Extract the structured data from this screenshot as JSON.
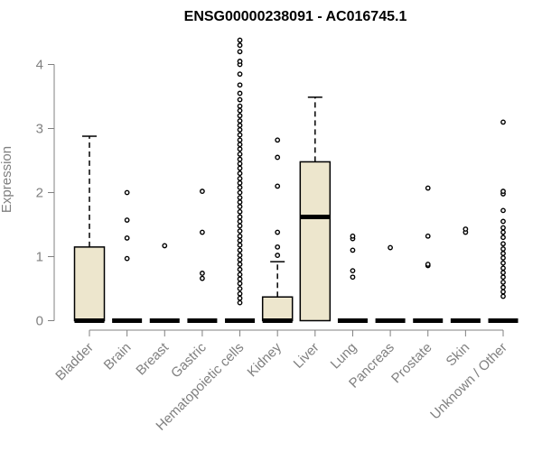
{
  "chart_data": {
    "type": "boxplot",
    "title": "ENSG00000238091 - AC016745.1",
    "ylabel": "Expression",
    "xlabel": "",
    "ylim": [
      0,
      4.4
    ],
    "yticks": [
      0,
      1,
      2,
      3,
      4
    ],
    "box_fill": "#EDE6CD",
    "axis_color": "#808080",
    "categories": [
      "Bladder",
      "Brain",
      "Breast",
      "Gastric",
      "Hematopoietic cells",
      "Kidney",
      "Liver",
      "Lung",
      "Pancreas",
      "Prostate",
      "Skin",
      "Unknown / Other"
    ],
    "boxes": [
      {
        "category": "Bladder",
        "min": 0,
        "q1": 0,
        "median": 0,
        "q3": 1.15,
        "max": 2.88,
        "outliers": []
      },
      {
        "category": "Brain",
        "min": 0,
        "q1": 0,
        "median": 0,
        "q3": 0,
        "max": 0,
        "outliers": [
          0.97,
          1.29,
          1.57,
          2.0
        ]
      },
      {
        "category": "Breast",
        "min": 0,
        "q1": 0,
        "median": 0,
        "q3": 0,
        "max": 0,
        "outliers": [
          1.17
        ]
      },
      {
        "category": "Gastric",
        "min": 0,
        "q1": 0,
        "median": 0,
        "q3": 0,
        "max": 0,
        "outliers": [
          0.66,
          0.74,
          1.38,
          2.02
        ]
      },
      {
        "category": "Hematopoietic cells",
        "min": 0,
        "q1": 0,
        "median": 0,
        "q3": 0,
        "max": 0,
        "outliers": [
          0.28,
          0.35,
          0.42,
          0.5,
          0.58,
          0.65,
          0.72,
          0.8,
          0.88,
          0.95,
          1.02,
          1.1,
          1.18,
          1.25,
          1.32,
          1.4,
          1.48,
          1.55,
          1.62,
          1.7,
          1.78,
          1.85,
          1.92,
          2.0,
          2.08,
          2.15,
          2.22,
          2.3,
          2.38,
          2.45,
          2.52,
          2.6,
          2.68,
          2.75,
          2.82,
          2.9,
          2.98,
          3.05,
          3.12,
          3.2,
          3.28,
          3.35,
          3.45,
          3.55,
          3.68,
          3.85,
          4.0,
          4.05,
          4.2,
          4.3,
          4.38
        ]
      },
      {
        "category": "Kidney",
        "min": 0,
        "q1": 0,
        "median": 0,
        "q3": 0.37,
        "max": 0.92,
        "outliers": [
          1.02,
          1.15,
          1.38,
          2.1,
          2.55,
          2.82
        ]
      },
      {
        "category": "Liver",
        "min": 0,
        "q1": 0,
        "median": 1.62,
        "q3": 2.48,
        "max": 3.49,
        "outliers": []
      },
      {
        "category": "Lung",
        "min": 0,
        "q1": 0,
        "median": 0,
        "q3": 0,
        "max": 0,
        "outliers": [
          0.68,
          0.78,
          1.1,
          1.28,
          1.32
        ]
      },
      {
        "category": "Pancreas",
        "min": 0,
        "q1": 0,
        "median": 0,
        "q3": 0,
        "max": 0,
        "outliers": [
          1.14
        ]
      },
      {
        "category": "Prostate",
        "min": 0,
        "q1": 0,
        "median": 0,
        "q3": 0,
        "max": 0,
        "outliers": [
          0.86,
          0.88,
          1.32,
          2.07
        ]
      },
      {
        "category": "Skin",
        "min": 0,
        "q1": 0,
        "median": 0,
        "q3": 0,
        "max": 0,
        "outliers": [
          1.38,
          1.43
        ]
      },
      {
        "category": "Unknown / Other",
        "min": 0,
        "q1": 0,
        "median": 0,
        "q3": 0,
        "max": 0,
        "outliers": [
          0.38,
          0.45,
          0.52,
          0.6,
          0.68,
          0.75,
          0.82,
          0.9,
          0.98,
          1.05,
          1.12,
          1.2,
          1.3,
          1.38,
          1.45,
          1.55,
          1.72,
          1.98,
          2.02,
          3.1
        ]
      }
    ]
  }
}
